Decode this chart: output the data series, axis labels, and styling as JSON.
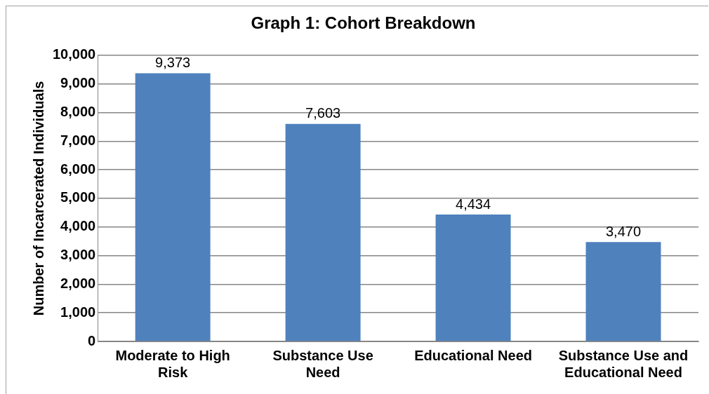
{
  "chart_data": {
    "type": "bar",
    "title": "Graph 1: Cohort Breakdown",
    "ylabel": "Number of Incarcerated Individuals",
    "categories": [
      "Moderate to High Risk",
      "Substance Use Need",
      "Educational Need",
      "Substance Use and Educational Need"
    ],
    "values": [
      9373,
      7603,
      4434,
      3470
    ],
    "color": "#4f81bd",
    "value_labels": [
      "9,373",
      "7,603",
      "4,434",
      "3,470"
    ],
    "ylim": [
      0,
      10000
    ],
    "yticks": [
      {
        "value": 0,
        "label": "0"
      },
      {
        "value": 1000,
        "label": "1,000"
      },
      {
        "value": 2000,
        "label": "2,000"
      },
      {
        "value": 3000,
        "label": "3,000"
      },
      {
        "value": 4000,
        "label": "4,000"
      },
      {
        "value": 5000,
        "label": "5,000"
      },
      {
        "value": 6000,
        "label": "6,000"
      },
      {
        "value": 7000,
        "label": "7,000"
      },
      {
        "value": 8000,
        "label": "8,000"
      },
      {
        "value": 9000,
        "label": "9,000"
      },
      {
        "value": 10000,
        "label": "10,000"
      }
    ],
    "grid": "y",
    "legend": false
  }
}
